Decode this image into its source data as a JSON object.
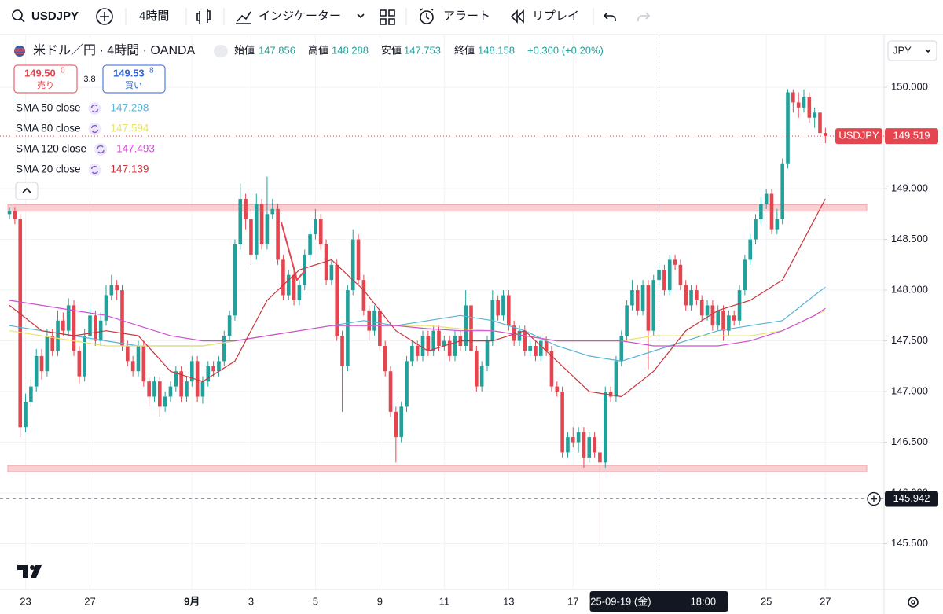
{
  "toolbar": {
    "symbol": "USDJPY",
    "interval": "4時間",
    "indicators": "インジケーター",
    "alert": "アラート",
    "replay": "リプレイ"
  },
  "chart_data": {
    "type": "candlestick",
    "title": "米ドル／円 · 4時間 · OANDA",
    "ohlc_legend": {
      "open_label": "始値",
      "open": 147.856,
      "high_label": "高値",
      "high": 148.288,
      "low_label": "安値",
      "low": 147.753,
      "close_label": "終値",
      "close": 148.158,
      "change": "+0.300 (+0.20%)"
    },
    "sell": {
      "price": "149.50",
      "pip": "0",
      "label": "売り"
    },
    "spread": "3.8",
    "buy": {
      "price": "149.53",
      "pip": "8",
      "label": "買い"
    },
    "currency": "JPY",
    "up_color": "#22a09a",
    "down_color": "#e5454e",
    "open": [
      148.75,
      148.78,
      148.7,
      146.65,
      146.9,
      147.05,
      147.35,
      147.2,
      147.55,
      147.4,
      147.7,
      147.6,
      147.85,
      147.4,
      147.15,
      147.55,
      147.75,
      147.5,
      147.7,
      147.95,
      148.05,
      148.0,
      147.45,
      147.3,
      147.2,
      147.45,
      147.1,
      146.95,
      147.1,
      146.85,
      146.95,
      147.05,
      147.2,
      146.95,
      147.1,
      147.3,
      146.95,
      147.1,
      147.25,
      147.2,
      147.3,
      147.55,
      147.75,
      148.45,
      148.9,
      148.7,
      148.35,
      148.85,
      148.45,
      148.75,
      148.8,
      148.3,
      147.95,
      148.15,
      147.9,
      148.05,
      148.35,
      148.55,
      148.7,
      148.45,
      148.1,
      148.25,
      147.55,
      147.25,
      148.0,
      148.5,
      148.1,
      147.8,
      147.6,
      147.8,
      147.45,
      147.2,
      146.8,
      146.55,
      146.85,
      147.3,
      147.45,
      147.35,
      147.55,
      147.4,
      147.6,
      147.45,
      147.5,
      147.35,
      147.55,
      147.45,
      147.85,
      147.4,
      147.05,
      147.25,
      147.5,
      147.9,
      147.75,
      147.95,
      147.65,
      147.5,
      147.6,
      147.4,
      147.45,
      147.35,
      147.5,
      147.4,
      147.05,
      147.0,
      146.4,
      146.55,
      146.5,
      146.6,
      146.35,
      146.55,
      146.4,
      146.3,
      147.0,
      146.95,
      147.3,
      147.55,
      147.85,
      148.0,
      147.8,
      148.05,
      147.6,
      148.1,
      148.2,
      148.0,
      148.3,
      148.25,
      148.05,
      147.85,
      148.0,
      147.9,
      147.75,
      147.85,
      147.65,
      147.8,
      147.6,
      147.75,
      147.7,
      148.0,
      148.3,
      148.5,
      148.7,
      148.85,
      148.95,
      148.6,
      148.7,
      149.25,
      149.95,
      149.85,
      149.8,
      149.9,
      149.7,
      149.75,
      149.55
    ],
    "high": [
      148.82,
      148.82,
      148.75,
      146.98,
      147.12,
      147.42,
      147.42,
      147.62,
      147.62,
      147.8,
      147.78,
      147.92,
      147.9,
      147.45,
      147.62,
      147.82,
      147.8,
      147.78,
      148.05,
      148.15,
      148.1,
      148.05,
      147.5,
      147.35,
      147.5,
      147.5,
      147.15,
      147.15,
      147.15,
      147.0,
      147.1,
      147.25,
      147.25,
      147.15,
      147.35,
      147.35,
      147.15,
      147.3,
      147.3,
      147.35,
      147.6,
      147.8,
      148.5,
      149.05,
      148.95,
      148.8,
      148.95,
      148.9,
      149.12,
      148.9,
      148.85,
      148.35,
      148.2,
      148.2,
      148.1,
      148.4,
      148.6,
      148.8,
      148.75,
      148.5,
      148.3,
      148.3,
      147.6,
      148.05,
      148.6,
      148.55,
      148.15,
      147.85,
      147.85,
      147.85,
      147.5,
      147.25,
      146.85,
      146.9,
      147.35,
      147.5,
      147.5,
      147.6,
      147.6,
      147.65,
      147.65,
      147.55,
      147.55,
      147.6,
      147.6,
      148.0,
      147.9,
      147.45,
      147.3,
      147.55,
      148.0,
      147.95,
      148.0,
      148.0,
      147.7,
      147.65,
      147.65,
      147.5,
      147.5,
      147.55,
      147.55,
      147.45,
      147.1,
      147.05,
      146.6,
      146.65,
      146.65,
      146.65,
      146.6,
      146.6,
      146.45,
      147.05,
      147.05,
      147.35,
      147.6,
      147.9,
      148.1,
      148.05,
      148.1,
      148.1,
      148.15,
      148.25,
      148.25,
      148.35,
      148.35,
      148.3,
      148.1,
      148.05,
      148.05,
      147.95,
      147.9,
      147.9,
      147.85,
      147.85,
      147.8,
      147.8,
      148.05,
      148.35,
      148.55,
      148.75,
      148.92,
      149.0,
      149.0,
      148.8,
      149.3,
      149.98,
      149.98,
      149.95,
      149.98,
      149.95,
      149.8,
      149.8,
      149.6
    ],
    "low": [
      148.7,
      148.65,
      146.55,
      146.6,
      146.85,
      147.0,
      147.12,
      147.15,
      147.35,
      147.35,
      147.55,
      147.55,
      147.35,
      147.08,
      147.1,
      147.5,
      147.45,
      147.45,
      147.65,
      147.9,
      147.9,
      147.4,
      147.25,
      147.15,
      147.15,
      147.05,
      146.85,
      146.9,
      146.75,
      146.8,
      146.9,
      147.0,
      146.9,
      146.9,
      147.05,
      146.9,
      146.88,
      147.05,
      147.15,
      147.15,
      147.25,
      147.5,
      147.7,
      148.4,
      148.6,
      148.25,
      148.3,
      148.4,
      148.4,
      148.7,
      148.25,
      147.9,
      147.9,
      147.85,
      147.85,
      148.0,
      148.3,
      148.5,
      148.4,
      148.05,
      148.05,
      147.5,
      146.8,
      147.2,
      147.95,
      148.05,
      147.75,
      147.5,
      147.55,
      147.4,
      147.15,
      146.75,
      146.3,
      146.5,
      146.8,
      147.25,
      147.3,
      147.3,
      147.35,
      147.35,
      147.4,
      147.4,
      147.3,
      147.3,
      147.4,
      147.4,
      147.35,
      147.0,
      147.0,
      147.2,
      147.45,
      147.7,
      147.7,
      147.6,
      147.45,
      147.45,
      147.35,
      147.35,
      147.3,
      147.3,
      147.35,
      147.0,
      146.95,
      146.35,
      146.35,
      146.45,
      146.4,
      146.25,
      146.3,
      146.35,
      145.48,
      146.25,
      146.9,
      146.9,
      147.25,
      147.5,
      147.8,
      147.75,
      147.75,
      147.22,
      147.55,
      148.05,
      147.95,
      147.95,
      148.2,
      148.0,
      147.8,
      147.8,
      147.85,
      147.7,
      147.7,
      147.6,
      147.6,
      147.5,
      147.55,
      147.65,
      147.65,
      147.95,
      148.25,
      148.45,
      148.65,
      148.8,
      148.55,
      148.55,
      148.65,
      149.2,
      149.75,
      149.7,
      149.75,
      149.65,
      149.6,
      149.45,
      149.45
    ],
    "close": [
      148.78,
      148.7,
      146.65,
      146.9,
      147.05,
      147.35,
      147.2,
      147.55,
      147.4,
      147.7,
      147.6,
      147.85,
      147.4,
      147.15,
      147.55,
      147.75,
      147.5,
      147.7,
      147.95,
      148.05,
      148.0,
      147.45,
      147.3,
      147.2,
      147.45,
      147.1,
      146.95,
      147.1,
      146.85,
      146.95,
      147.05,
      147.2,
      146.95,
      147.1,
      147.3,
      146.95,
      147.1,
      147.25,
      147.2,
      147.3,
      147.55,
      147.75,
      148.45,
      148.9,
      148.7,
      148.35,
      148.85,
      148.45,
      148.75,
      148.8,
      148.3,
      147.95,
      148.15,
      147.9,
      148.05,
      148.35,
      148.55,
      148.7,
      148.45,
      148.1,
      148.25,
      147.55,
      147.25,
      148.0,
      148.5,
      148.1,
      147.8,
      147.6,
      147.8,
      147.45,
      147.2,
      146.8,
      146.55,
      146.85,
      147.3,
      147.45,
      147.35,
      147.55,
      147.4,
      147.6,
      147.45,
      147.5,
      147.35,
      147.55,
      147.45,
      147.85,
      147.4,
      147.05,
      147.25,
      147.5,
      147.9,
      147.75,
      147.95,
      147.65,
      147.5,
      147.6,
      147.4,
      147.45,
      147.35,
      147.5,
      147.4,
      147.05,
      147.0,
      146.4,
      146.55,
      146.5,
      146.6,
      146.35,
      146.55,
      146.4,
      146.3,
      147.0,
      146.95,
      147.3,
      147.55,
      147.85,
      148.0,
      147.8,
      148.05,
      147.6,
      148.1,
      148.2,
      148.0,
      148.3,
      148.25,
      148.05,
      147.85,
      148.0,
      147.9,
      147.75,
      147.85,
      147.65,
      147.8,
      147.6,
      147.75,
      147.7,
      148.0,
      148.3,
      148.5,
      148.7,
      148.85,
      148.95,
      148.6,
      148.7,
      149.25,
      149.95,
      149.85,
      149.8,
      149.9,
      149.7,
      149.75,
      149.55,
      149.52
    ],
    "series": [
      {
        "name": "SMA 50 close",
        "last": 147.298,
        "color": "#55b4d8",
        "x": [
          0,
          6,
          12,
          18,
          24,
          30,
          36,
          42,
          48,
          54,
          60,
          66,
          72,
          78,
          84,
          90,
          96,
          102,
          108,
          114,
          120,
          126,
          132,
          138,
          144,
          150,
          152
        ],
        "values": [
          147.65,
          147.6,
          147.55,
          147.5,
          147.45,
          147.45,
          147.45,
          147.5,
          147.55,
          147.6,
          147.65,
          147.7,
          147.65,
          147.7,
          147.75,
          147.7,
          147.6,
          147.45,
          147.35,
          147.3,
          147.4,
          147.5,
          147.6,
          147.65,
          147.7,
          147.95,
          148.03
        ]
      },
      {
        "name": "SMA 80 close",
        "last": 147.594,
        "color": "#ece36c",
        "x": [
          0,
          6,
          12,
          18,
          24,
          30,
          36,
          42,
          48,
          54,
          60,
          66,
          72,
          78,
          84,
          90,
          96,
          102,
          108,
          114,
          120,
          126,
          132,
          138,
          144,
          150,
          152
        ],
        "values": [
          147.6,
          147.55,
          147.5,
          147.45,
          147.45,
          147.45,
          147.45,
          147.5,
          147.55,
          147.6,
          147.65,
          147.65,
          147.65,
          147.65,
          147.62,
          147.6,
          147.55,
          147.5,
          147.5,
          147.5,
          147.55,
          147.55,
          147.55,
          147.55,
          147.6,
          147.75,
          147.8
        ]
      },
      {
        "name": "SMA 120 close",
        "last": 147.493,
        "color": "#d04fd5",
        "x": [
          0,
          6,
          12,
          18,
          24,
          30,
          36,
          42,
          48,
          54,
          60,
          66,
          72,
          78,
          84,
          90,
          96,
          102,
          108,
          114,
          120,
          126,
          132,
          138,
          144,
          150,
          152
        ],
        "values": [
          147.9,
          147.85,
          147.8,
          147.75,
          147.65,
          147.55,
          147.5,
          147.5,
          147.55,
          147.6,
          147.65,
          147.65,
          147.65,
          147.62,
          147.6,
          147.6,
          147.55,
          147.5,
          147.5,
          147.5,
          147.45,
          147.45,
          147.45,
          147.5,
          147.6,
          147.75,
          147.82
        ]
      },
      {
        "name": "SMA 20 close",
        "last": 147.139,
        "color": "#c9343c",
        "x": [
          0,
          6,
          12,
          18,
          24,
          30,
          36,
          42,
          48,
          54,
          60,
          66,
          72,
          78,
          84,
          90,
          96,
          102,
          108,
          114,
          120,
          126,
          132,
          138,
          144,
          150,
          152
        ],
        "values": [
          147.85,
          147.6,
          147.55,
          147.6,
          147.55,
          147.2,
          147.1,
          147.3,
          147.9,
          148.2,
          148.3,
          148.0,
          147.6,
          147.4,
          147.5,
          147.5,
          147.6,
          147.3,
          147.0,
          146.95,
          147.2,
          147.6,
          147.8,
          147.9,
          148.1,
          148.7,
          148.9
        ]
      }
    ],
    "levels": [
      148.81,
      146.24
    ],
    "last_price": 149.519,
    "crosshair": {
      "index": 121,
      "price": 145.942,
      "date": "2025-09-19 (金)",
      "time": "18:00"
    },
    "xlim": [
      -0.3,
      162.2
    ],
    "xticks": [
      {
        "value": 3,
        "label": "23"
      },
      {
        "value": 15,
        "label": "27"
      },
      {
        "value": 34,
        "label": "9月"
      },
      {
        "value": 45,
        "label": "3"
      },
      {
        "value": 57,
        "label": "5"
      },
      {
        "value": 69,
        "label": "9"
      },
      {
        "value": 81,
        "label": "11"
      },
      {
        "value": 93,
        "label": "13"
      },
      {
        "value": 105,
        "label": "17"
      },
      {
        "value": 141,
        "label": "25"
      },
      {
        "value": 152,
        "label": "27"
      }
    ],
    "ylim": [
      145.047,
      150.512
    ],
    "yticks": [
      {
        "value": 145.5,
        "label": "145.500"
      },
      {
        "value": 146,
        "label": "146.000"
      },
      {
        "value": 146.5,
        "label": "146.500"
      },
      {
        "value": 147,
        "label": "147.000"
      },
      {
        "value": 147.5,
        "label": "147.500"
      },
      {
        "value": 148,
        "label": "148.000"
      },
      {
        "value": 148.5,
        "label": "148.500"
      },
      {
        "value": 149,
        "label": "149.000"
      },
      {
        "value": 149.5,
        "label": "149.500"
      },
      {
        "value": 150,
        "label": "150.000"
      }
    ],
    "grid": true
  }
}
